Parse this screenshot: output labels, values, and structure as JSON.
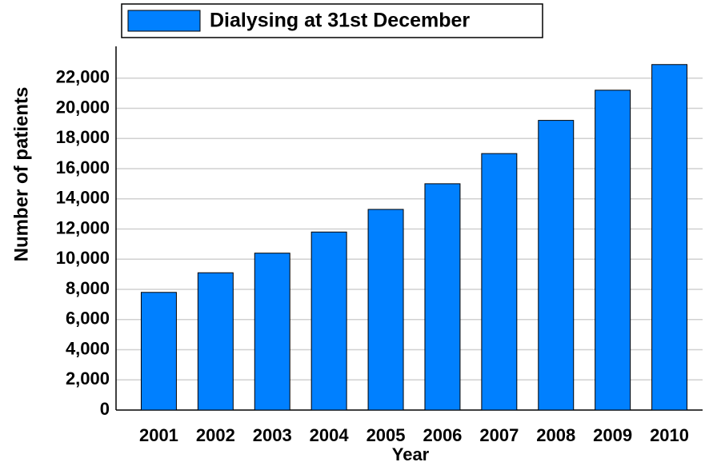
{
  "chart_data": {
    "type": "bar",
    "legend": "Dialysing at 31st December",
    "x_label": "Year",
    "y_label": "Number of patients",
    "categories": [
      "2001",
      "2002",
      "2003",
      "2004",
      "2005",
      "2006",
      "2007",
      "2008",
      "2009",
      "2010"
    ],
    "values": [
      7800,
      9100,
      10400,
      11800,
      13300,
      15000,
      17000,
      19200,
      21200,
      22900
    ],
    "color": "#0080ff",
    "ylim": [
      0,
      24000
    ],
    "yticks": [
      0,
      {
        "value": 2000,
        "label": "2,000"
      },
      {
        "value": 4000,
        "label": "4,000"
      },
      {
        "value": 6000,
        "label": "6,000"
      },
      {
        "value": 8000,
        "label": "8,000"
      },
      {
        "value": 10000,
        "label": "10,000"
      },
      {
        "value": 12000,
        "label": "12,000"
      },
      {
        "value": 14000,
        "label": "14,000"
      },
      {
        "value": 16000,
        "label": "16,000"
      },
      {
        "value": 18000,
        "label": "18,000"
      },
      {
        "value": 20000,
        "label": "20,000"
      },
      {
        "value": 22000,
        "label": "22,000"
      }
    ],
    "grid": true
  }
}
